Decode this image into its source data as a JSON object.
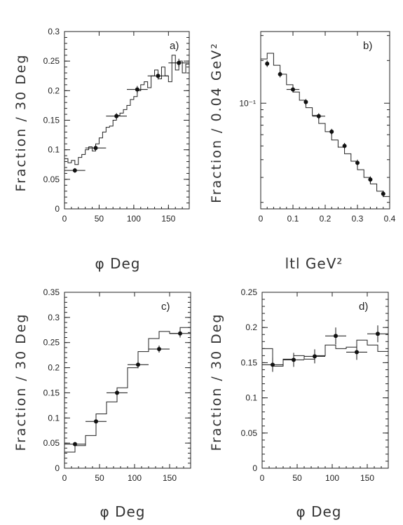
{
  "chart_data": [
    {
      "id": "a",
      "type": "line",
      "panel_label": "a)",
      "ylabel": "Fraction / 30 Deg",
      "xlabel": "φ Deg",
      "xlim": [
        0,
        180
      ],
      "ylim": [
        0,
        0.3
      ],
      "yscale": "linear",
      "xticks": [
        0,
        50,
        100,
        150
      ],
      "yticks": [
        0,
        0.05,
        0.1,
        0.15,
        0.2,
        0.25,
        0.3
      ],
      "ytick_labels": [
        "0",
        "0.05",
        "0.1",
        "0.15",
        "0.2",
        "0.25",
        "0.3"
      ],
      "histogram": {
        "edges": [
          0,
          5,
          10,
          15,
          20,
          25,
          30,
          35,
          40,
          45,
          50,
          55,
          60,
          65,
          70,
          75,
          80,
          85,
          90,
          95,
          100,
          105,
          110,
          115,
          120,
          125,
          130,
          135,
          140,
          145,
          150,
          155,
          160,
          165,
          170,
          175,
          180
        ],
        "values": [
          0.085,
          0.078,
          0.082,
          0.075,
          0.087,
          0.092,
          0.1,
          0.105,
          0.098,
          0.11,
          0.12,
          0.13,
          0.138,
          0.14,
          0.15,
          0.158,
          0.162,
          0.168,
          0.175,
          0.185,
          0.19,
          0.2,
          0.21,
          0.215,
          0.205,
          0.225,
          0.235,
          0.22,
          0.24,
          0.225,
          0.215,
          0.26,
          0.235,
          0.25,
          0.23,
          0.245
        ]
      },
      "points": [
        {
          "x": 15,
          "y": 0.065,
          "xerr": 15,
          "yerr": 0.004
        },
        {
          "x": 45,
          "y": 0.103,
          "xerr": 15,
          "yerr": 0.005
        },
        {
          "x": 75,
          "y": 0.157,
          "xerr": 15,
          "yerr": 0.005
        },
        {
          "x": 105,
          "y": 0.202,
          "xerr": 15,
          "yerr": 0.006
        },
        {
          "x": 135,
          "y": 0.225,
          "xerr": 15,
          "yerr": 0.006
        },
        {
          "x": 165,
          "y": 0.247,
          "xerr": 15,
          "yerr": 0.007
        }
      ]
    },
    {
      "id": "b",
      "type": "line",
      "panel_label": "b)",
      "ylabel": "Fraction / 0.04 GeV²",
      "xlabel": "ltl   GeV²",
      "xlim": [
        0,
        0.4
      ],
      "ylim": [
        0.018,
        0.32
      ],
      "yscale": "log",
      "xticks": [
        0,
        0.1,
        0.2,
        0.3,
        0.4
      ],
      "yticks": [
        0.1
      ],
      "ytick_labels": [
        "10⁻¹"
      ],
      "histogram": {
        "edges": [
          0,
          0.02,
          0.04,
          0.06,
          0.08,
          0.1,
          0.12,
          0.14,
          0.16,
          0.18,
          0.2,
          0.22,
          0.24,
          0.26,
          0.28,
          0.3,
          0.32,
          0.34,
          0.36,
          0.38,
          0.4
        ],
        "values": [
          0.205,
          0.225,
          0.185,
          0.16,
          0.135,
          0.12,
          0.105,
          0.093,
          0.082,
          0.072,
          0.063,
          0.055,
          0.049,
          0.044,
          0.039,
          0.034,
          0.03,
          0.027,
          0.024,
          0.022
        ]
      },
      "points": [
        {
          "x": 0.02,
          "y": 0.19,
          "xerr": 0.0,
          "yerr": 0.01
        },
        {
          "x": 0.06,
          "y": 0.16,
          "xerr": 0.0,
          "yerr": 0.008
        },
        {
          "x": 0.1,
          "y": 0.125,
          "xerr": 0.02,
          "yerr": 0.006
        },
        {
          "x": 0.14,
          "y": 0.102,
          "xerr": 0.0,
          "yerr": 0.005
        },
        {
          "x": 0.18,
          "y": 0.081,
          "xerr": 0.02,
          "yerr": 0.004
        },
        {
          "x": 0.22,
          "y": 0.063,
          "xerr": 0.0,
          "yerr": 0.003
        },
        {
          "x": 0.26,
          "y": 0.05,
          "xerr": 0.0,
          "yerr": 0.0025
        },
        {
          "x": 0.3,
          "y": 0.038,
          "xerr": 0.0,
          "yerr": 0.002
        },
        {
          "x": 0.34,
          "y": 0.029,
          "xerr": 0.0,
          "yerr": 0.0015
        },
        {
          "x": 0.38,
          "y": 0.023,
          "xerr": 0.0,
          "yerr": 0.0012
        }
      ]
    },
    {
      "id": "c",
      "type": "line",
      "panel_label": "c)",
      "ylabel": "Fraction / 30 Deg",
      "xlabel": "φ  Deg",
      "xlim": [
        0,
        180
      ],
      "ylim": [
        0,
        0.35
      ],
      "yscale": "linear",
      "xticks": [
        0,
        50,
        100,
        150
      ],
      "yticks": [
        0,
        0.05,
        0.1,
        0.15,
        0.2,
        0.25,
        0.3,
        0.35
      ],
      "ytick_labels": [
        "0",
        "0.05",
        "0.1",
        "0.15",
        "0.2",
        "0.25",
        "0.3",
        "0.35"
      ],
      "histogram": {
        "edges": [
          0,
          15,
          30,
          45,
          60,
          75,
          90,
          105,
          120,
          135,
          150,
          165,
          180
        ],
        "values": [
          0.032,
          0.045,
          0.065,
          0.108,
          0.132,
          0.16,
          0.2,
          0.232,
          0.258,
          0.272,
          0.268,
          0.28
        ]
      },
      "points": [
        {
          "x": 15,
          "y": 0.048,
          "xerr": 15,
          "yerr": 0.004
        },
        {
          "x": 45,
          "y": 0.093,
          "xerr": 15,
          "yerr": 0.005
        },
        {
          "x": 75,
          "y": 0.15,
          "xerr": 15,
          "yerr": 0.006
        },
        {
          "x": 105,
          "y": 0.206,
          "xerr": 15,
          "yerr": 0.007
        },
        {
          "x": 135,
          "y": 0.237,
          "xerr": 15,
          "yerr": 0.007
        },
        {
          "x": 165,
          "y": 0.268,
          "xerr": 15,
          "yerr": 0.008
        }
      ]
    },
    {
      "id": "d",
      "type": "line",
      "panel_label": "d)",
      "ylabel": "Fraction / 30 Deg",
      "xlabel": "φ  Deg",
      "xlim": [
        0,
        180
      ],
      "ylim": [
        0,
        0.25
      ],
      "yscale": "linear",
      "xticks": [
        0,
        50,
        100,
        150
      ],
      "yticks": [
        0,
        0.05,
        0.1,
        0.15,
        0.2,
        0.25
      ],
      "ytick_labels": [
        "0",
        "0.05",
        "0.1",
        "0.15",
        "0.2",
        "0.25"
      ],
      "histogram": {
        "edges": [
          0,
          15,
          30,
          45,
          60,
          75,
          90,
          105,
          120,
          135,
          150,
          165,
          180
        ],
        "values": [
          0.17,
          0.145,
          0.155,
          0.16,
          0.155,
          0.16,
          0.175,
          0.17,
          0.172,
          0.182,
          0.175,
          0.166
        ]
      },
      "points": [
        {
          "x": 15,
          "y": 0.147,
          "xerr": 15,
          "yerr": 0.01
        },
        {
          "x": 45,
          "y": 0.154,
          "xerr": 15,
          "yerr": 0.01
        },
        {
          "x": 75,
          "y": 0.159,
          "xerr": 15,
          "yerr": 0.01
        },
        {
          "x": 105,
          "y": 0.188,
          "xerr": 15,
          "yerr": 0.012
        },
        {
          "x": 135,
          "y": 0.165,
          "xerr": 15,
          "yerr": 0.011
        },
        {
          "x": 165,
          "y": 0.191,
          "xerr": 15,
          "yerr": 0.012
        }
      ]
    }
  ]
}
